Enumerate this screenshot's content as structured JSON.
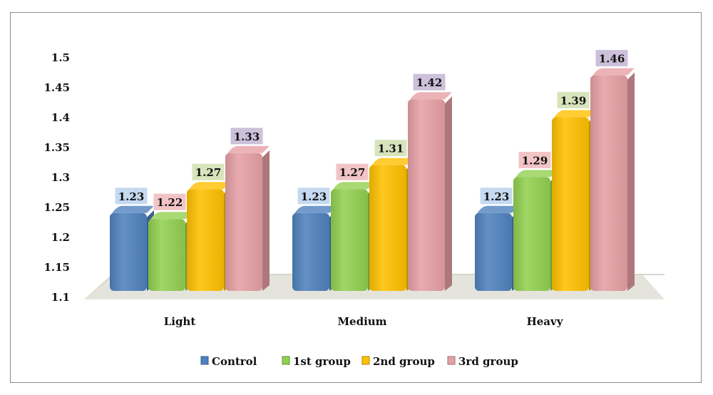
{
  "chart_data": {
    "type": "bar",
    "title": "",
    "xlabel": "",
    "ylabel": "",
    "ylim": [
      1.1,
      1.5
    ],
    "yticks": [
      "1.1",
      "1.15",
      "1.2",
      "1.25",
      "1.3",
      "1.35",
      "1.4",
      "1.45",
      "1.5"
    ],
    "categories": [
      "Light",
      "Medium",
      "Heavy"
    ],
    "series": [
      {
        "name": "Control",
        "values": [
          1.23,
          1.23,
          1.23
        ],
        "color": "#4f81bd"
      },
      {
        "name": "1st group",
        "values": [
          1.22,
          1.27,
          1.29
        ],
        "color": "#92d050"
      },
      {
        "name": "2nd group",
        "values": [
          1.27,
          1.31,
          1.39
        ],
        "color": "#ffc000"
      },
      {
        "name": "3rd group",
        "values": [
          1.33,
          1.42,
          1.46
        ],
        "color": "#e6a0a4"
      }
    ],
    "label_box_colors": [
      "#c5d9f1",
      "#f2c4c6",
      "#d8e4bc",
      "#ccc0da"
    ],
    "legend": "bottom",
    "grid": false,
    "floor_color": "#e4e4dc"
  }
}
